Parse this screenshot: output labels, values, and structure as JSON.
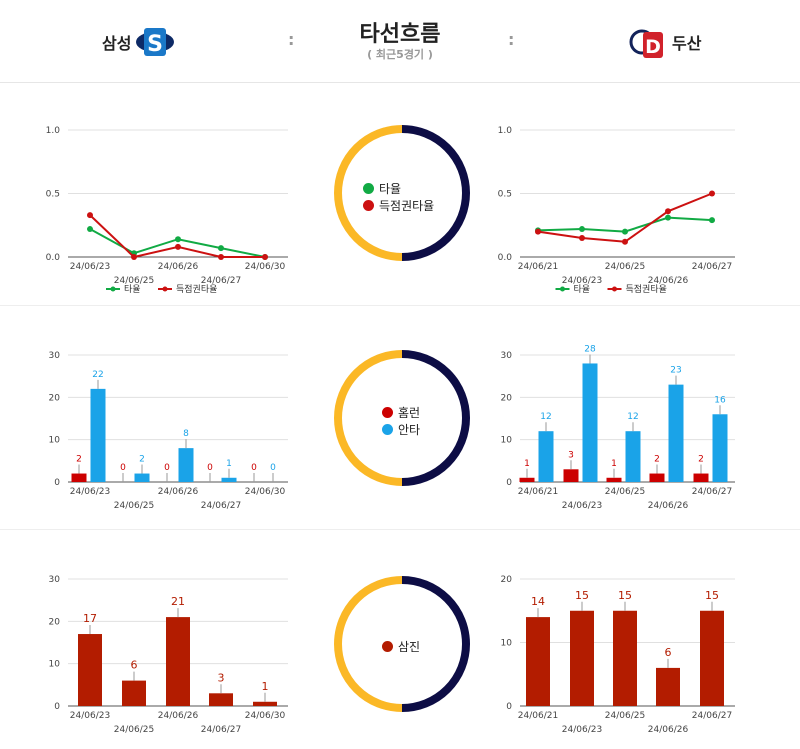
{
  "header": {
    "home_team": "삼성",
    "away_team": "두산",
    "title": "타선흐름",
    "subtitle": "( 최근5경기 )",
    "separator": ":"
  },
  "colors": {
    "batting_avg": "#11aa44",
    "risp_avg": "#cc1111",
    "homerun": "#cc0000",
    "hits": "#1aa3e8",
    "strikeouts": "#b31c00",
    "ring_left": "#fbb826",
    "ring_right": "#0d0d45"
  },
  "center_legends": {
    "avg": [
      "타율",
      "득점권타율"
    ],
    "hits": [
      "홈런",
      "안타"
    ],
    "so": [
      "삼진"
    ]
  },
  "chart_data": [
    {
      "id": "samsung-avg",
      "type": "line",
      "categories": [
        "24/06/23",
        "24/06/25",
        "24/06/26",
        "24/06/27",
        "24/06/30"
      ],
      "ylim": [
        0,
        1.0
      ],
      "yticks": [
        "0.0",
        "0.5",
        "1.0"
      ],
      "series": [
        {
          "name": "타율",
          "values": [
            0.22,
            0.03,
            0.14,
            0.07,
            0.0
          ]
        },
        {
          "name": "득점권타율",
          "values": [
            0.33,
            0.0,
            0.08,
            0.0,
            0.0
          ]
        }
      ],
      "legend": "bottom"
    },
    {
      "id": "doosan-avg",
      "type": "line",
      "categories": [
        "24/06/21",
        "24/06/23",
        "24/06/25",
        "24/06/26",
        "24/06/27"
      ],
      "ylim": [
        0,
        1.0
      ],
      "yticks": [
        "0.0",
        "0.5",
        "1.0"
      ],
      "series": [
        {
          "name": "타율",
          "values": [
            0.21,
            0.22,
            0.2,
            0.31,
            0.29
          ]
        },
        {
          "name": "득점권타율",
          "values": [
            0.2,
            0.15,
            0.12,
            0.36,
            0.5
          ]
        }
      ],
      "legend": "bottom"
    },
    {
      "id": "samsung-hits",
      "type": "bar",
      "categories": [
        "24/06/23",
        "24/06/25",
        "24/06/26",
        "24/06/27",
        "24/06/30"
      ],
      "ylim": [
        0,
        30
      ],
      "yticks": [
        "0",
        "10",
        "20",
        "30"
      ],
      "series": [
        {
          "name": "홈런",
          "values": [
            2,
            0,
            0,
            0,
            0
          ]
        },
        {
          "name": "안타",
          "values": [
            22,
            2,
            8,
            1,
            0
          ]
        }
      ]
    },
    {
      "id": "doosan-hits",
      "type": "bar",
      "categories": [
        "24/06/21",
        "24/06/23",
        "24/06/25",
        "24/06/26",
        "24/06/27"
      ],
      "ylim": [
        0,
        30
      ],
      "yticks": [
        "0",
        "10",
        "20",
        "30"
      ],
      "series": [
        {
          "name": "홈런",
          "values": [
            1,
            3,
            1,
            2,
            2
          ]
        },
        {
          "name": "안타",
          "values": [
            12,
            28,
            12,
            23,
            16
          ]
        }
      ]
    },
    {
      "id": "samsung-so",
      "type": "bar",
      "categories": [
        "24/06/23",
        "24/06/25",
        "24/06/26",
        "24/06/27",
        "24/06/30"
      ],
      "ylim": [
        0,
        30
      ],
      "yticks": [
        "0",
        "10",
        "20",
        "30"
      ],
      "series": [
        {
          "name": "삼진",
          "values": [
            17,
            6,
            21,
            3,
            1
          ]
        }
      ]
    },
    {
      "id": "doosan-so",
      "type": "bar",
      "categories": [
        "24/06/21",
        "24/06/23",
        "24/06/25",
        "24/06/26",
        "24/06/27"
      ],
      "ylim": [
        0,
        20
      ],
      "yticks": [
        "0",
        "10",
        "20"
      ],
      "series": [
        {
          "name": "삼진",
          "values": [
            14,
            15,
            15,
            6,
            15
          ]
        }
      ]
    }
  ]
}
